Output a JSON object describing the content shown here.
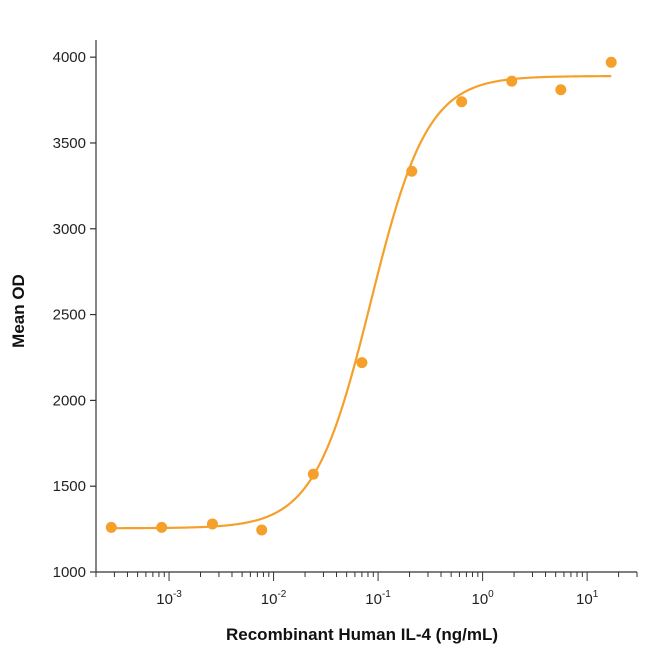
{
  "chart_data": {
    "type": "scatter",
    "title": "",
    "xlabel": "Recombinant Human IL-4 (ng/mL)",
    "ylabel": "Mean OD",
    "x_scale": "log",
    "xlim": [
      0.0002,
      30
    ],
    "ylim": [
      1000,
      4100
    ],
    "yticks": [
      1000,
      1500,
      2000,
      2500,
      3000,
      3500,
      4000
    ],
    "xticks": [
      {
        "base": "10",
        "exp": "-3",
        "value": 0.001
      },
      {
        "base": "10",
        "exp": "-2",
        "value": 0.01
      },
      {
        "base": "10",
        "exp": "-1",
        "value": 0.1
      },
      {
        "base": "10",
        "exp": "0",
        "value": 1
      },
      {
        "base": "10",
        "exp": "1",
        "value": 10
      }
    ],
    "grid": false,
    "legend": "none",
    "color": "#f5a02a",
    "series": [
      {
        "x": [
          0.00028,
          0.00085,
          0.0026,
          0.0077,
          0.024,
          0.07,
          0.21,
          0.63,
          1.9,
          5.6,
          17
        ],
        "y": [
          1260,
          1260,
          1280,
          1245,
          1570,
          2220,
          3335,
          3740,
          3860,
          3810,
          3970
        ]
      }
    ],
    "fit_curve": {
      "bottom": 1255,
      "top": 3890,
      "ec50": 0.085,
      "hill": 1.6
    }
  }
}
